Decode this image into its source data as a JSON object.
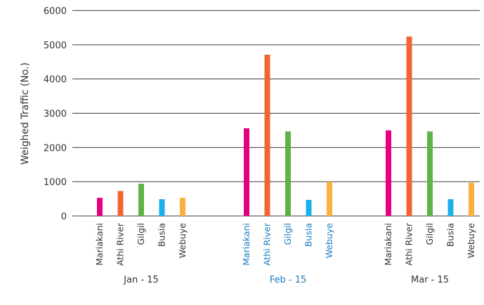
{
  "chart_data": {
    "type": "bar",
    "ylabel": "Weighed Traffic (No.)",
    "ylim": [
      0,
      6000
    ],
    "yticks": [
      0,
      1000,
      2000,
      3000,
      4000,
      5000,
      6000
    ],
    "grid": true,
    "groups": [
      {
        "label": "Jan - 15",
        "label_color": "#333333",
        "bars": [
          {
            "category": "Mariakani",
            "value": 530,
            "color": "#e6007e"
          },
          {
            "category": "Athi River",
            "value": 730,
            "color": "#f26532"
          },
          {
            "category": "Gilgil",
            "value": 940,
            "color": "#5fb246"
          },
          {
            "category": "Busia",
            "value": 490,
            "color": "#1ab0ea"
          },
          {
            "category": "Webuye",
            "value": 530,
            "color": "#fbb040"
          }
        ]
      },
      {
        "label": "Feb - 15",
        "label_color": "#1a7bbf",
        "bars": [
          {
            "category": "Mariakani",
            "value": 2560,
            "color": "#e6007e"
          },
          {
            "category": "Athi River",
            "value": 4710,
            "color": "#f26532"
          },
          {
            "category": "Gilgil",
            "value": 2470,
            "color": "#5fb246"
          },
          {
            "category": "Busia",
            "value": 470,
            "color": "#1ab0ea"
          },
          {
            "category": "Webuye",
            "value": 1000,
            "color": "#fbb040"
          }
        ]
      },
      {
        "label": "Mar - 15",
        "label_color": "#333333",
        "bars": [
          {
            "category": "Mariakani",
            "value": 2500,
            "color": "#e6007e"
          },
          {
            "category": "Athi River",
            "value": 5240,
            "color": "#f26532"
          },
          {
            "category": "Gilgil",
            "value": 2470,
            "color": "#5fb246"
          },
          {
            "category": "Busia",
            "value": 490,
            "color": "#1ab0ea"
          },
          {
            "category": "Webuye",
            "value": 970,
            "color": "#fbb040"
          }
        ]
      }
    ]
  }
}
